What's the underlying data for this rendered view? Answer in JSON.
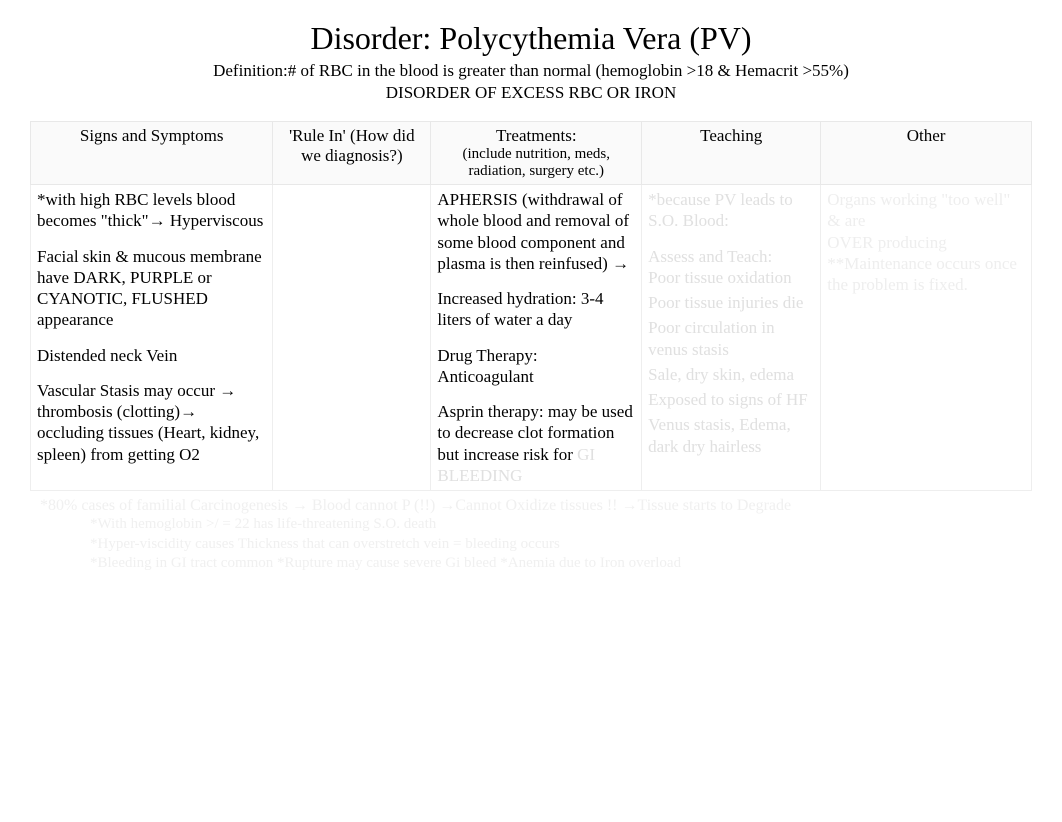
{
  "title": "Disorder: Polycythemia Vera (PV)",
  "definition": "Definition:# of RBC in the blood is greater than normal (hemoglobin >18 & Hemacrit >55%)",
  "subtitle": "DISORDER OF EXCESS RBC OR IRON",
  "headers": {
    "signs": "Signs and Symptoms",
    "rulein_l1": "'Rule In' (How did",
    "rulein_l2": "we diagnosis?)",
    "treat_l1": "Treatments:",
    "treat_l2": "(include nutrition, meds,",
    "treat_l3": "radiation, surgery etc.)",
    "teaching": "Teaching",
    "other": "Other"
  },
  "signs": {
    "p1": "*with high RBC levels blood becomes \"thick\"→   Hyperviscous",
    "p2": "Facial skin & mucous membrane have DARK, PURPLE or CYANOTIC, FLUSHED appearance",
    "p3": "Distended neck Vein",
    "p4": "Vascular Stasis   may occur →  thrombosis (clotting)→   occluding tissues (Heart, kidney, spleen) from getting O2"
  },
  "treatments": {
    "p1": "APHERSIS  (withdrawal of whole blood and removal of some blood component and plasma is then reinfused) →",
    "p2": "Increased hydration:    3-4 liters of water a day",
    "p3": "Drug Therapy:   Anticoagulant",
    "p4a": "Asprin therapy:   may be used to decrease clot formation but increase risk for ",
    "p4b": "GI BLEEDING"
  },
  "teaching": {
    "intro": "*because PV leads to S.O. Blood:",
    "header": "Assess and Teach:",
    "items": [
      "Poor tissue oxidation",
      "Poor tissue injuries die",
      "Poor circulation in venus stasis",
      "Sale, dry skin, edema",
      "Exposed to signs of HF",
      "Venus stasis, Edema, dark dry hairless"
    ]
  },
  "other": {
    "p1": "Organs working \"too well\" & are",
    "p2": "OVER producing",
    "p3": "**Maintenance occurs once the problem is fixed."
  },
  "footer": {
    "line1": "*80% cases of familial   Carcinogenesis  →    Blood cannot P (!!)   →Cannot Oxidize tissues !!   →Tissue starts to Degrade",
    "line2": "*With hemoglobin >/ = 22 has life-threatening S.O. death",
    "line3": "*Hyper-viscidity causes Thickness that can overstretch vein = bleeding occurs",
    "line4": "*Bleeding in GI tract common   *Rupture may cause severe Gi bleed   *Anemia due to Iron overload"
  }
}
